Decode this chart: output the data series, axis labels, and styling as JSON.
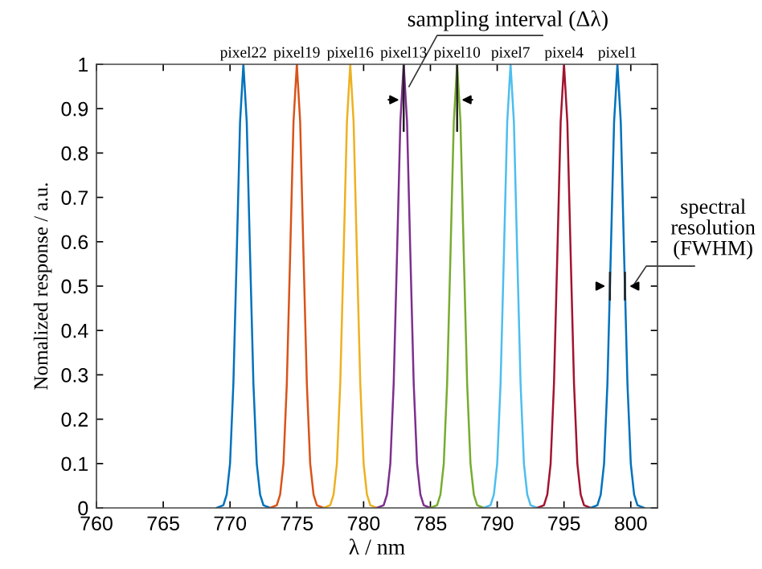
{
  "chart_data": {
    "type": "line",
    "xlabel": "λ / nm",
    "ylabel": "Nomalized response / a.u.",
    "xlim": [
      760,
      802
    ],
    "xticks": [
      760,
      765,
      770,
      775,
      780,
      785,
      790,
      795,
      800
    ],
    "ylim": [
      0,
      1
    ],
    "yticks": [
      0,
      0.1,
      0.2,
      0.3,
      0.4,
      0.5,
      0.6,
      0.7,
      0.8,
      0.9,
      1
    ],
    "grid": false,
    "legend": false,
    "marker": "none",
    "line_style": "solid",
    "annotations": [
      {
        "text": "sampling interval (Δλ)",
        "x": 783.4,
        "y": 0.95
      },
      {
        "text": "spectral\nresolution\n(FWHM)",
        "x": 799,
        "y": 0.5
      }
    ],
    "series": [
      {
        "name": "pixel22",
        "color": "#0072bd",
        "x": [
          769,
          769.5,
          769.75,
          770,
          770.25,
          770.5,
          770.75,
          771,
          771.25,
          771.5,
          771.75,
          772,
          772.25,
          772.5,
          773
        ],
        "values": [
          0,
          0.006,
          0.03,
          0.1,
          0.28,
          0.57,
          0.87,
          1,
          0.87,
          0.57,
          0.28,
          0.1,
          0.03,
          0.006,
          0
        ]
      },
      {
        "name": "pixel19",
        "color": "#d95319",
        "x": [
          773,
          773.5,
          773.75,
          774,
          774.25,
          774.5,
          774.75,
          775,
          775.25,
          775.5,
          775.75,
          776,
          776.25,
          776.5,
          777
        ],
        "values": [
          0,
          0.006,
          0.03,
          0.1,
          0.28,
          0.57,
          0.87,
          1,
          0.87,
          0.57,
          0.28,
          0.1,
          0.03,
          0.006,
          0
        ]
      },
      {
        "name": "pixel16",
        "color": "#edb120",
        "x": [
          777,
          777.5,
          777.75,
          778,
          778.25,
          778.5,
          778.75,
          779,
          779.25,
          779.5,
          779.75,
          780,
          780.25,
          780.5,
          781
        ],
        "values": [
          0,
          0.006,
          0.03,
          0.1,
          0.28,
          0.57,
          0.87,
          1,
          0.87,
          0.57,
          0.28,
          0.1,
          0.03,
          0.006,
          0
        ]
      },
      {
        "name": "pixel13",
        "color": "#7e2f8e",
        "x": [
          781,
          781.5,
          781.75,
          782,
          782.25,
          782.5,
          782.75,
          783,
          783.25,
          783.5,
          783.75,
          784,
          784.25,
          784.5,
          785
        ],
        "values": [
          0,
          0.006,
          0.03,
          0.1,
          0.28,
          0.57,
          0.87,
          1,
          0.87,
          0.57,
          0.28,
          0.1,
          0.03,
          0.006,
          0
        ]
      },
      {
        "name": "pixel10",
        "color": "#77ac30",
        "x": [
          785,
          785.5,
          785.75,
          786,
          786.25,
          786.5,
          786.75,
          787,
          787.25,
          787.5,
          787.75,
          788,
          788.25,
          788.5,
          789
        ],
        "values": [
          0,
          0.006,
          0.03,
          0.1,
          0.28,
          0.57,
          0.87,
          1,
          0.87,
          0.57,
          0.28,
          0.1,
          0.03,
          0.006,
          0
        ]
      },
      {
        "name": "pixel7",
        "color": "#4dbeee",
        "x": [
          789,
          789.5,
          789.75,
          790,
          790.25,
          790.5,
          790.75,
          791,
          791.25,
          791.5,
          791.75,
          792,
          792.25,
          792.5,
          793
        ],
        "values": [
          0,
          0.006,
          0.03,
          0.1,
          0.28,
          0.57,
          0.87,
          1,
          0.87,
          0.57,
          0.28,
          0.1,
          0.03,
          0.006,
          0
        ]
      },
      {
        "name": "pixel4",
        "color": "#a2142f",
        "x": [
          793,
          793.5,
          793.75,
          794,
          794.25,
          794.5,
          794.75,
          795,
          795.25,
          795.5,
          795.75,
          796,
          796.25,
          796.5,
          797
        ],
        "values": [
          0,
          0.006,
          0.03,
          0.1,
          0.28,
          0.57,
          0.87,
          1,
          0.87,
          0.57,
          0.28,
          0.1,
          0.03,
          0.006,
          0
        ]
      },
      {
        "name": "pixel1",
        "color": "#0072bd",
        "x": [
          797,
          797.5,
          797.75,
          798,
          798.25,
          798.5,
          798.75,
          799,
          799.25,
          799.5,
          799.75,
          800,
          800.25,
          800.5,
          801
        ],
        "values": [
          0,
          0.006,
          0.03,
          0.1,
          0.28,
          0.57,
          0.87,
          1,
          0.87,
          0.57,
          0.28,
          0.1,
          0.03,
          0.006,
          0
        ]
      }
    ]
  }
}
